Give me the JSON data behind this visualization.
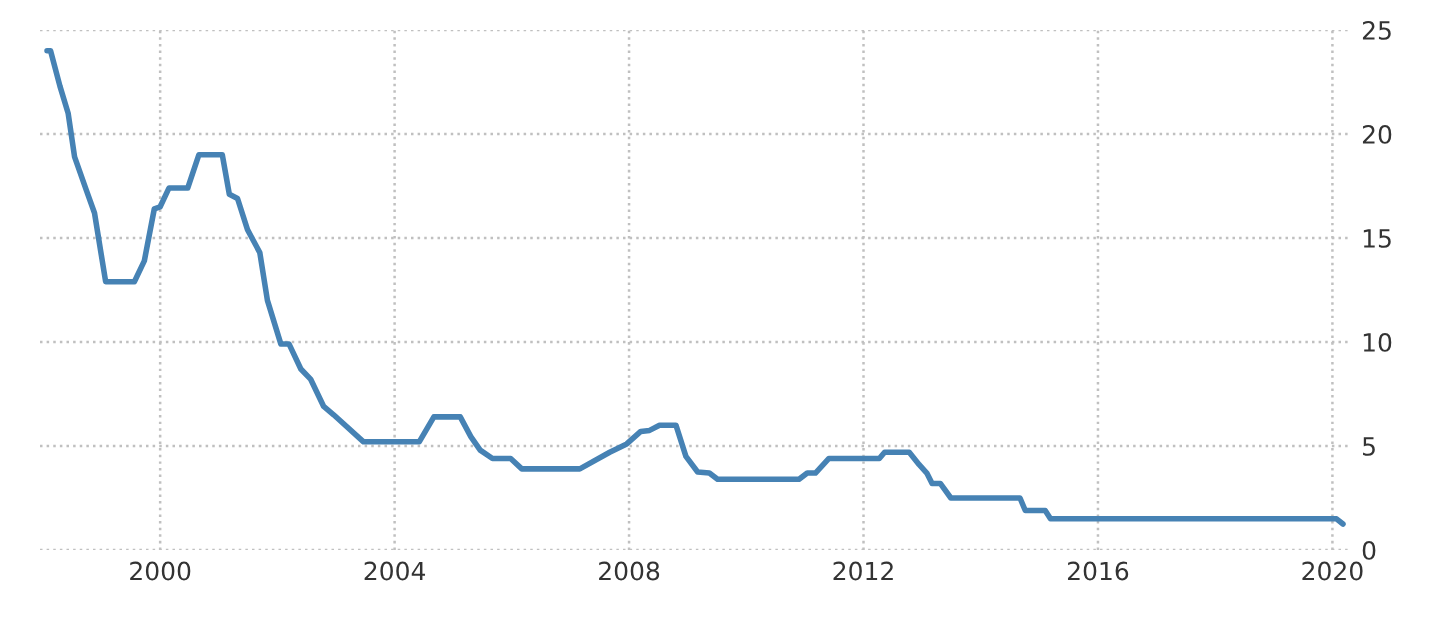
{
  "chart_data": {
    "type": "line",
    "x": [
      1998.07,
      1998.13,
      1998.29,
      1998.43,
      1998.54,
      1998.74,
      1998.88,
      1999.07,
      1999.56,
      1999.73,
      1999.9,
      2000.0,
      2000.15,
      2000.47,
      2000.66,
      2001.06,
      2001.18,
      2001.32,
      2001.49,
      2001.7,
      2001.83,
      2002.06,
      2002.2,
      2002.4,
      2002.57,
      2002.79,
      2002.96,
      2003.47,
      2004.42,
      2004.67,
      2005.12,
      2005.3,
      2005.46,
      2005.67,
      2005.98,
      2006.17,
      2007.16,
      2007.67,
      2007.96,
      2008.2,
      2008.35,
      2008.52,
      2008.8,
      2008.97,
      2009.17,
      2009.37,
      2009.51,
      2010.9,
      2011.04,
      2011.18,
      2011.41,
      2012.27,
      2012.36,
      2012.78,
      2012.95,
      2013.08,
      2013.17,
      2013.31,
      2013.49,
      2014.67,
      2014.76,
      2015.1,
      2015.19,
      2020.07,
      2020.18
    ],
    "series": [
      {
        "color": "#4682b4",
        "values": [
          24.0,
          24.0,
          22.3,
          21.0,
          18.9,
          17.3,
          16.2,
          12.9,
          12.9,
          13.9,
          16.4,
          16.5,
          17.4,
          17.4,
          19.0,
          19.0,
          17.1,
          16.9,
          15.4,
          14.3,
          12.0,
          9.9,
          9.9,
          8.7,
          8.2,
          6.9,
          6.5,
          5.2,
          5.2,
          6.4,
          6.4,
          5.45,
          4.8,
          4.4,
          4.4,
          3.9,
          3.9,
          4.7,
          5.1,
          5.7,
          5.75,
          6.0,
          6.0,
          4.5,
          3.75,
          3.7,
          3.4,
          3.4,
          3.7,
          3.7,
          4.4,
          4.4,
          4.7,
          4.7,
          4.1,
          3.7,
          3.2,
          3.2,
          2.5,
          2.5,
          1.9,
          1.9,
          1.5,
          1.5,
          1.25
        ]
      }
    ],
    "xlim": [
      1997.95,
      2020.3
    ],
    "xticks": [
      2000,
      2004,
      2008,
      2012,
      2016,
      2020
    ],
    "ylim": [
      0,
      25
    ],
    "yticks": [
      0,
      5,
      10,
      15,
      20,
      25
    ],
    "grid": true,
    "line_style": "solid"
  }
}
